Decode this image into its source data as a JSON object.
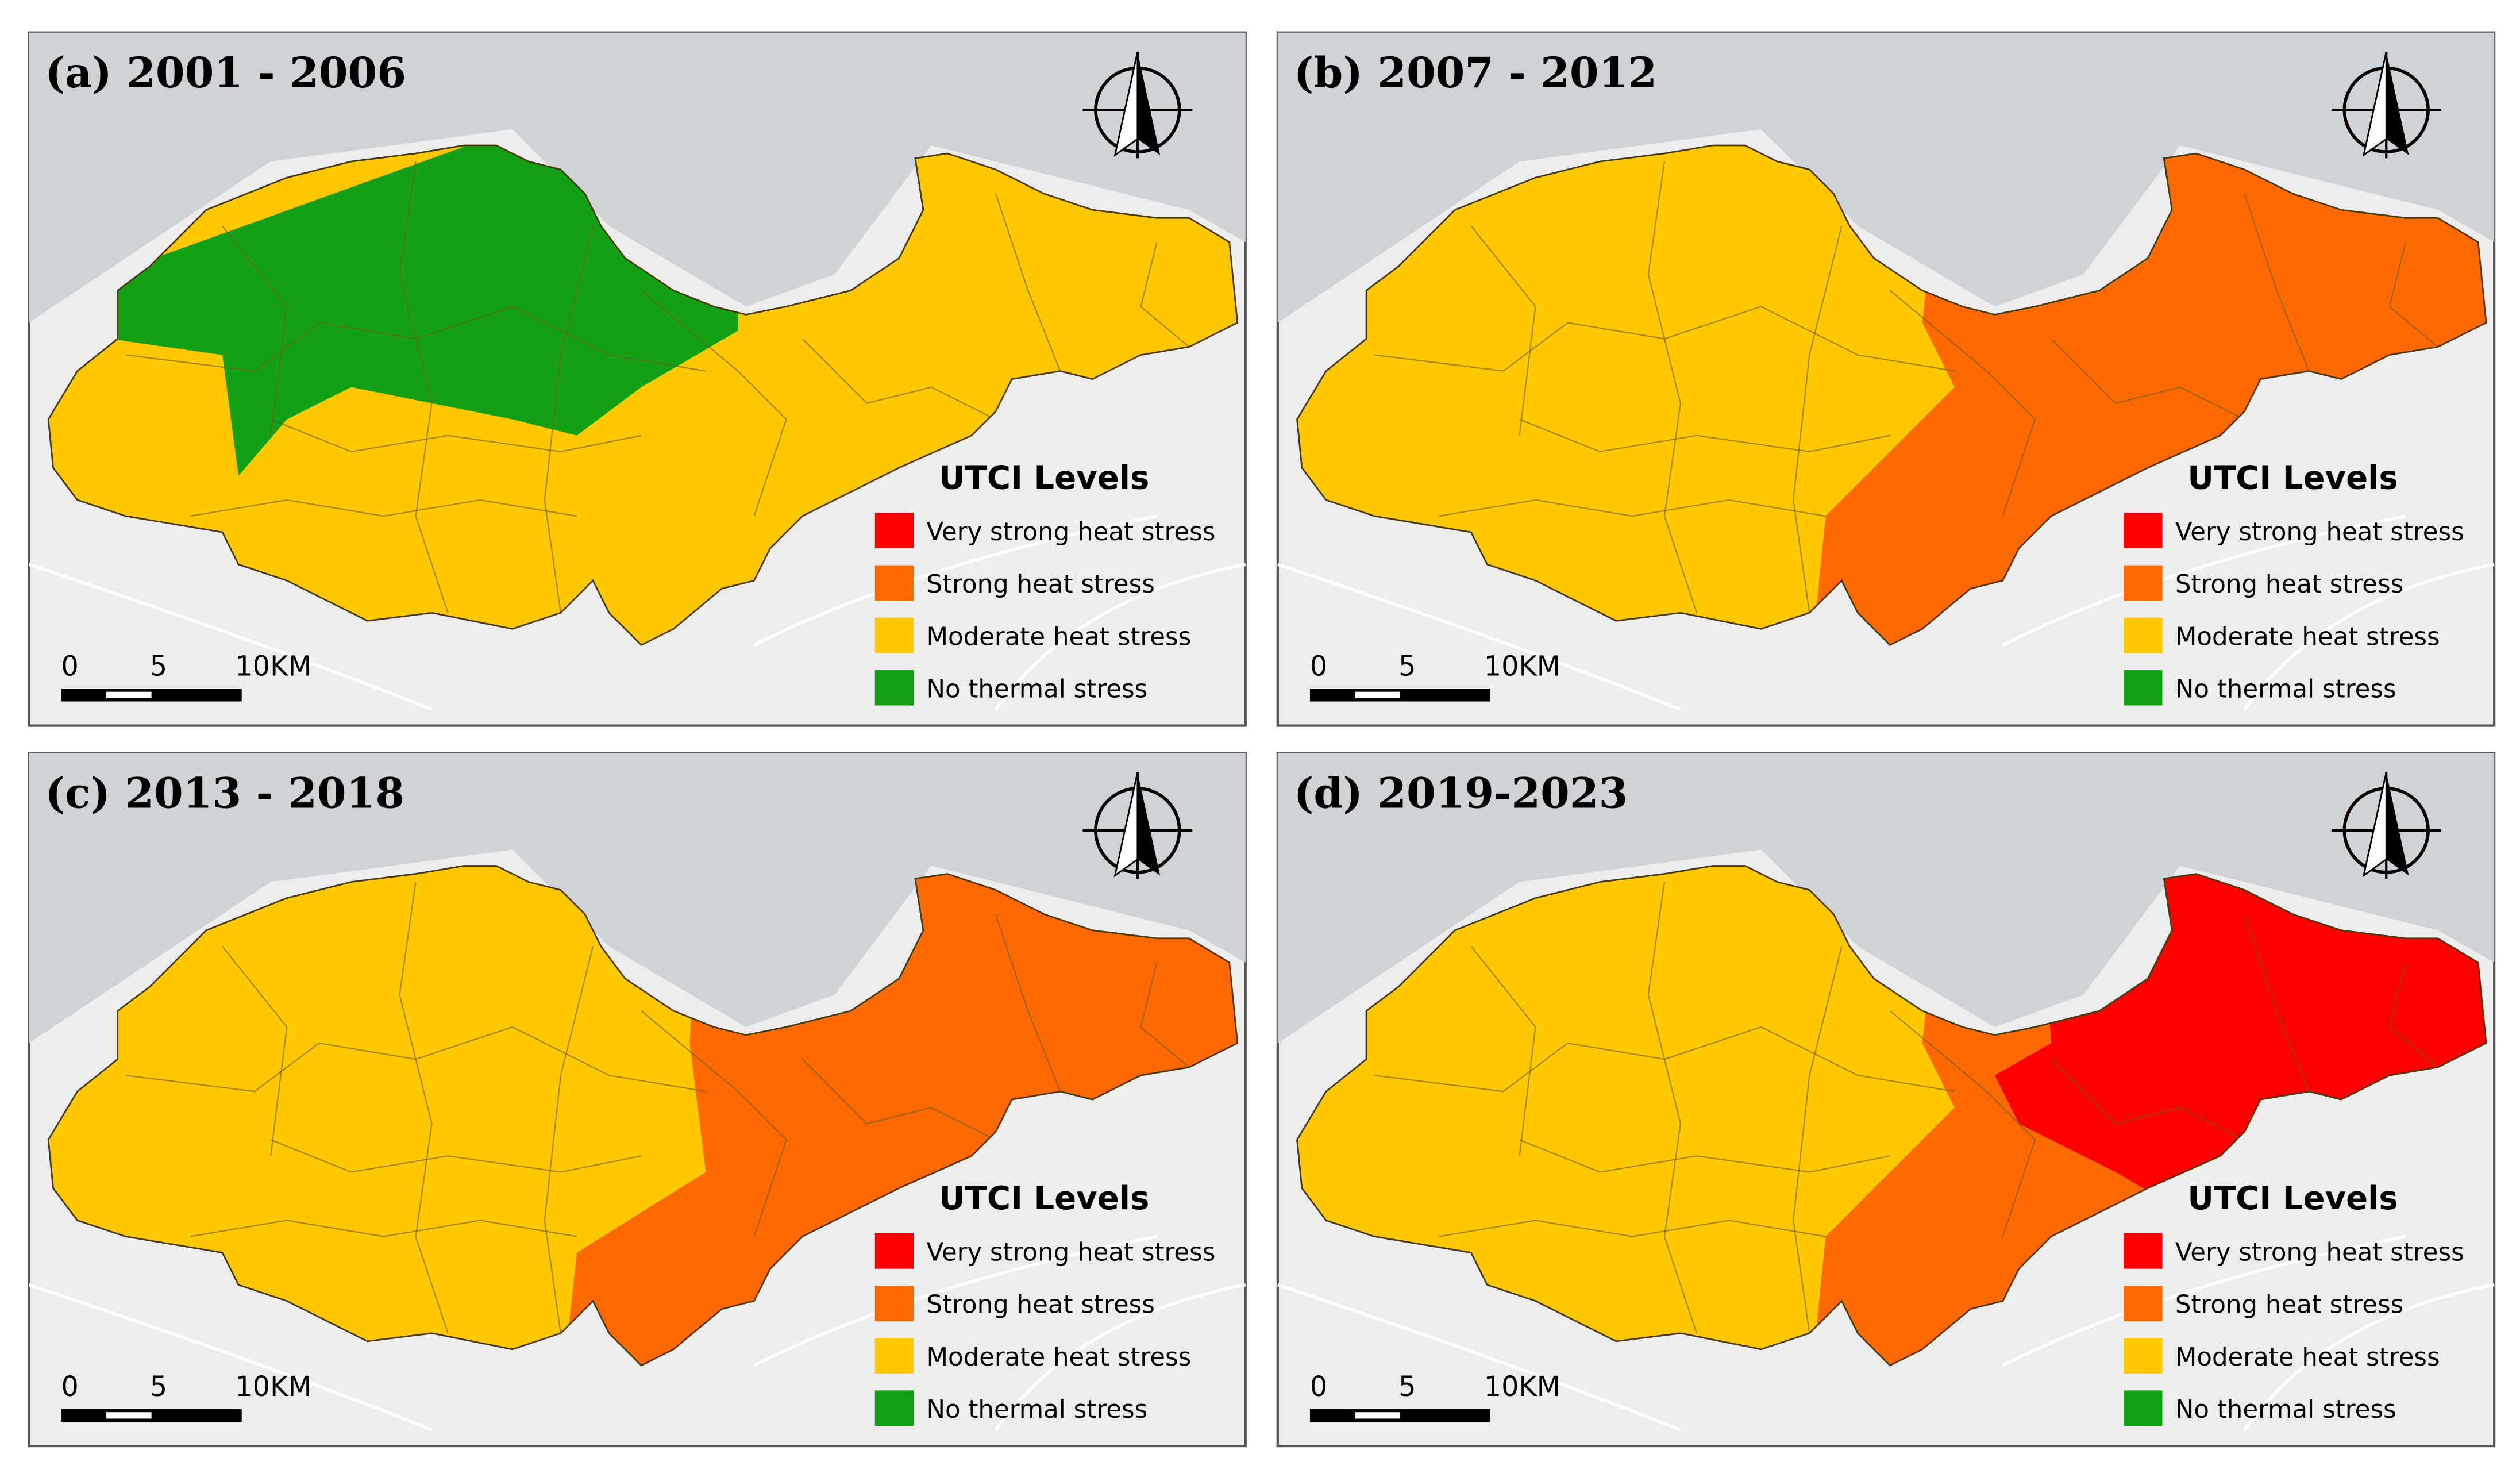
{
  "panels": [
    {
      "title": "(a) 2001 - 2006"
    },
    {
      "title": "(b) 2007 - 2012"
    },
    {
      "title": "(c) 2013 - 2018"
    },
    {
      "title": "(d) 2019-2023"
    }
  ],
  "legend": {
    "title": "UTCI Levels",
    "items": [
      {
        "label": "Very strong heat stress",
        "color": "#ff0000"
      },
      {
        "label": "Strong heat stress",
        "color": "#ff6a00"
      },
      {
        "label": "Moderate heat stress",
        "color": "#ffc800"
      },
      {
        "label": "No thermal stress",
        "color": "#14a014"
      }
    ]
  },
  "scale_labels": [
    "0",
    "5",
    "10KM"
  ]
}
